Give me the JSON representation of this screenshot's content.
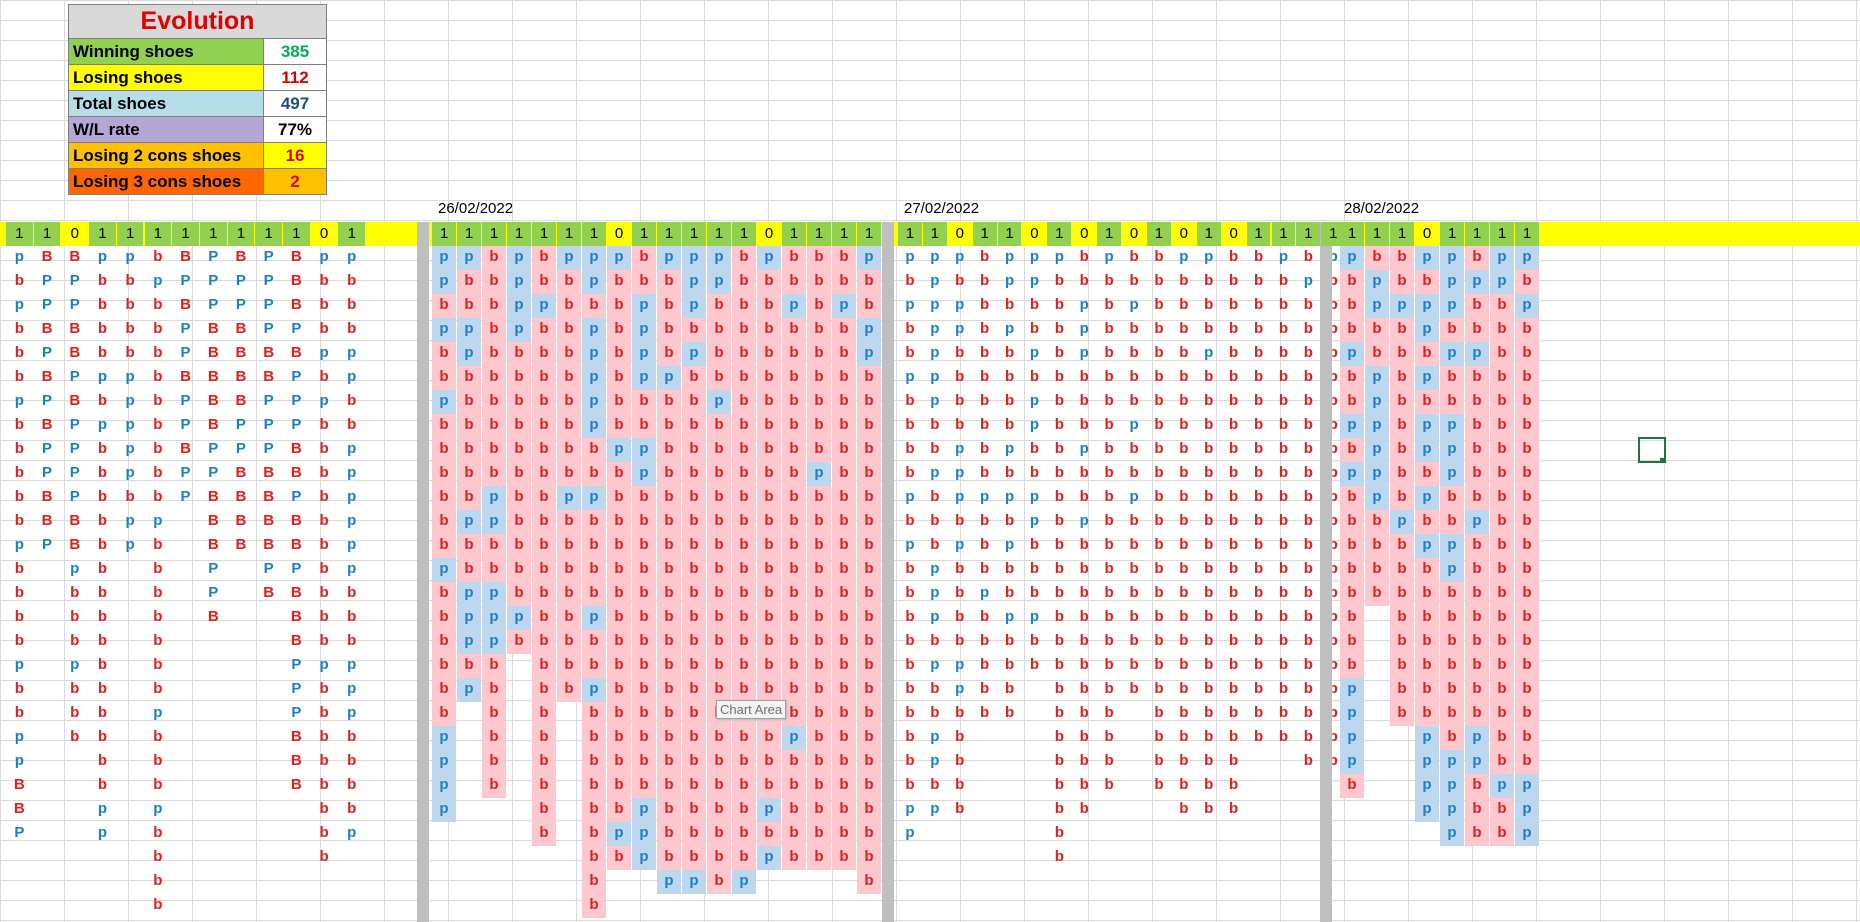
{
  "summary": {
    "title": "Evolution",
    "rows": [
      {
        "label": "Winning shoes",
        "value": "385",
        "bg": "#92d050",
        "value_color": "#00b050"
      },
      {
        "label": "Losing shoes",
        "value": "112",
        "bg": "#ffff00",
        "value_color": "#e00000"
      },
      {
        "label": "Total shoes",
        "value": "497",
        "bg": "#b7dde8",
        "value_color": "#1f4e79"
      },
      {
        "label": "W/L rate",
        "value": "77%",
        "bg": "#b4a7d6",
        "value_color": "#000000"
      },
      {
        "label": "Losing 2 cons shoes",
        "value": "16",
        "bg": "#ffc000",
        "value_color": "#e00000",
        "value_bg": "#ffff00"
      },
      {
        "label": "Losing 3 cons shoes",
        "value": "2",
        "bg": "#ff6600",
        "value_color": "#e00000",
        "value_bg": "#ffc000"
      }
    ]
  },
  "dates": [
    "26/02/2022",
    "27/02/2022",
    "28/02/2022"
  ],
  "tooltip": "Chart Area",
  "colors": {
    "accent_grid": "#217346",
    "red": "#e02020",
    "blue": "#1f7fc4",
    "pink_fill": "#ffc7ce",
    "blue_fill": "#bdd7ee"
  },
  "blocks": [
    {
      "id": "left",
      "header": "1,1,0,1,1,1,1,1,1,1,1,0,1",
      "filled": false,
      "columns": [
        "pbpbbbpbbbbbpbbbbpbbppBBP",
        "BPPBPBPBPPBBP",
        "BPPBBPBPPPPBBpbbbpbbb",
        "pbbbbpbpbbbbbbbbbbbbbbbpp",
        "pbbbbpppppbpp",
        "bpbbbbbbbbbpbbbbbbbpbbbpbbbb",
        "BPBPPBPPBPP",
        "PPPBBBBBPPBBBPPB",
        "BPPBBBBPPBBBB",
        "PPPPBBPPPBBBBPB",
        "BBBPBPPPBBPBBPBBBPPPBBB",
        "pbbbpbpbbbbbbbbbbpbbbbbbbb",
        "pbbbppbbppppppbbbpppbbbbp"
      ]
    },
    {
      "id": "d26",
      "header": "1,1,1,1,1,1,1,0,1,1,1,1,1,0,1,1,1,1",
      "filled": true,
      "columns": [
        "ppbpbbpbbbbbbpbbbbbbpppp",
        "pbbppbbbbbbpbbpppbp",
        "bbbbbbbbbbppbbpppbbbbbb",
        "ppppbbbbbbbbbbbpb",
        "bbpbbbbbbbbbbbbbbbbbbbbbb",
        "pbbbbbbbbbpbbbbbbbb",
        "ppbpppppbbpbbbbpbbpbbbbbbbbb",
        "pbbbbbbbpbbbbbbbbbbbbbbbpb",
        "bbppppbbppbbbbbbbbbbbbbppp",
        "pbbbbpbbbbbbbbbbbbbbbbbbbbp",
        "pppbpbbbbbbbbbbbbbbbbbbbbbp",
        "ppbbbbpbbbbbbbbbbbbbbbbbbbb",
        "bbbbbbbbbbbbbbbbbbbbbbbbbbp",
        "pbbbbbbbbbbbbbbbbbbbbbbpbp",
        "bbpbbbbbbbbbbbbbbbbbpbbbbb",
        "bbbbbbbbbpbbbbbbbbbbbbbbbb",
        "bbpbbbbbbbbbbbbbbbbbbbbbbb",
        "pbbppbbbbbbbbbbbbbbbbbbbbbb"
      ]
    },
    {
      "id": "d27",
      "header": "1,1,0,1,1,0,1,0,1,0,1,0,1,0,1,1,1,1,0",
      "filled": false,
      "columns": [
        "pbpbbpbbbbpbpbbbbbbbbbbpp",
        "pppppppbbpbbbpppbpbbppbp",
        "pbppbbbbpppbpbbbbppbbbbb",
        "bbbbbbbbbbpbbbpbbbbb",
        "ppbpbbbbpbpbpbbpbbbb",
        "ppbbpbppbbppbbbpbb",
        "pbbbbbbbbbbbbbbbbbbbbbbbbb",
        "bbpppbbbpbbpbbbbbbbbbbbb",
        "pbbbbbbbbbbbbbbbbbbbbbb",
        "bbpbbbbpbbpbbbbbbbb",
        "bbbbbbbbbbbbbbbbbbbbbbb",
        "pbbbbbbbbbbbbbbbbbbbbbbb",
        "pbbbpbbbbbbbbbbbbbbbbbbb",
        "bbbbbbbbbbbbbbbbbbbbbbbb",
        "bbbbbbbbbbbbbbbbbbbbb",
        "pbbbbbbbbbbbbbbbbbbbb",
        "bpbbbbbbbbbbbbbbbbbbbb",
        "pbbbbbbbbbbbbbbbbbbbbb",
        "bbbbbbbbbbbbbbbbbbbbb"
      ]
    },
    {
      "id": "d28",
      "header": "1,1,1,0,1,1,1,1",
      "filled": true,
      "columns": [
        "pbbbpbbpbpbbbbbbbbppppb",
        "bppbbppppppbbbb",
        "bbpbbbbbbbbpbbbbbbbb",
        "pbppbpbppbpbpbbbbbbbpppp",
        "pppbpbbpppbbppbbbbbbbpppp",
        "bpbbpbbbbbbpbbbbbbbbppbbb",
        "ppbbbbbbbbbbbbbbbbbbbbpbb",
        "pbpbbbbbbbbbbbbbbbbbbbppp"
      ]
    }
  ]
}
